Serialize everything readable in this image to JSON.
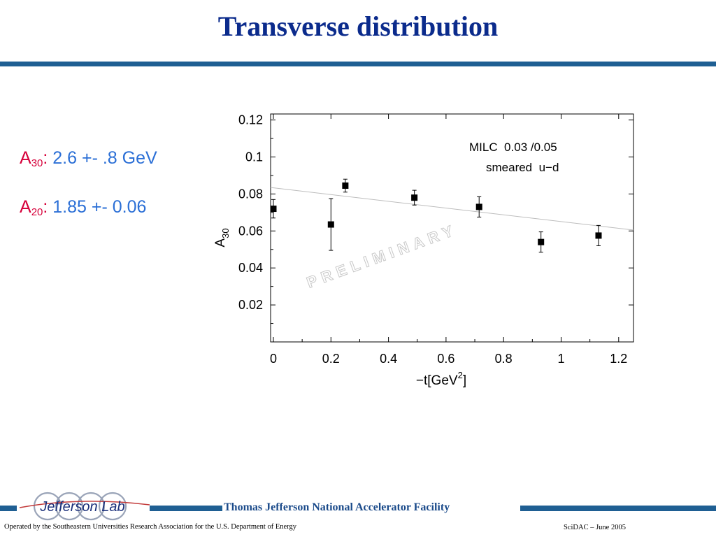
{
  "slide": {
    "title": "Transverse distribution"
  },
  "params": [
    {
      "symbol": "A",
      "sub": "30",
      "colon": ":",
      "value": "2.6 +- .8 GeV"
    },
    {
      "symbol": "A",
      "sub": "20",
      "colon": ":",
      "value": "1.85 +- 0.06"
    }
  ],
  "chart_data": {
    "type": "scatter",
    "xlabel_main": "−t[GeV",
    "xlabel_sup": "2",
    "xlabel_end": "]",
    "ylabel_main": "A",
    "ylabel_sub": "30",
    "xlim": [
      0,
      1.2
    ],
    "ylim": [
      0,
      0.12
    ],
    "xticks": [
      0,
      0.2,
      0.4,
      0.6,
      0.8,
      1,
      1.2
    ],
    "xtick_labels": [
      "0",
      "0.2",
      "0.4",
      "0.6",
      "0.8",
      "1",
      "1.2"
    ],
    "yticks": [
      0.02,
      0.04,
      0.06,
      0.08,
      0.1,
      0.12
    ],
    "ytick_labels": [
      "0.02",
      "0.04",
      "0.06",
      "0.08",
      "0.1",
      "0.12"
    ],
    "points": [
      {
        "x": 0.0,
        "y": 0.072,
        "err": 0.005
      },
      {
        "x": 0.2,
        "y": 0.0635,
        "err": 0.014
      },
      {
        "x": 0.25,
        "y": 0.0845,
        "err": 0.0035
      },
      {
        "x": 0.49,
        "y": 0.078,
        "err": 0.004
      },
      {
        "x": 0.715,
        "y": 0.073,
        "err": 0.0055
      },
      {
        "x": 0.93,
        "y": 0.054,
        "err": 0.0055
      },
      {
        "x": 1.13,
        "y": 0.0575,
        "err": 0.0055
      }
    ],
    "fit_line": {
      "x": [
        0,
        1.25
      ],
      "y": [
        0.0835,
        0.0605
      ]
    },
    "legend_line1": "MILC  0.03 /0.05",
    "legend_line2": "smeared  u−d",
    "watermark": "PRELIMINARY",
    "grid": false
  },
  "footer": {
    "logo_text": "Jefferson Lab",
    "facility": "Thomas Jefferson National Accelerator Facility",
    "operated_by": "Operated by the Southeastern Universities Research Association for the U.S. Department of  Energy",
    "event": "SciDAC – June  2005"
  },
  "colors": {
    "title": "#0b2b8c",
    "rule": "#1f5f93",
    "symbol": "#d6003a",
    "value": "#2b6fd6"
  }
}
